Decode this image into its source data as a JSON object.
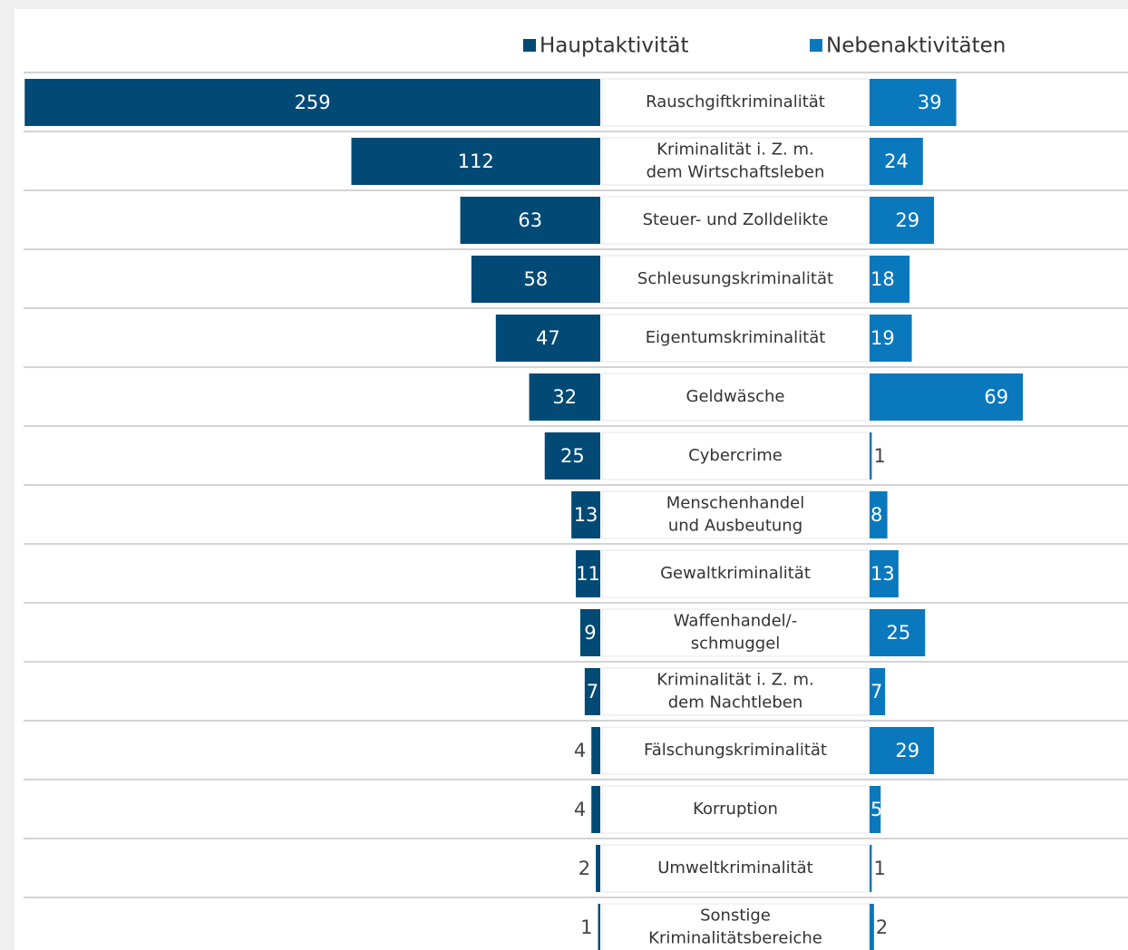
{
  "chart_data": {
    "type": "butterfly-bar",
    "categories": [
      [
        "Rauschgiftkriminalität"
      ],
      [
        "Kriminalität i. Z. m.",
        "dem Wirtschaftsleben"
      ],
      [
        "Steuer- und Zolldelikte"
      ],
      [
        "Schleusungskriminalität"
      ],
      [
        "Eigentumskriminalität"
      ],
      [
        "Geldwäsche"
      ],
      [
        "Cybercrime"
      ],
      [
        "Menschenhandel",
        "und Ausbeutung"
      ],
      [
        "Gewaltkriminalität"
      ],
      [
        "Waffenhandel/-",
        "schmuggel"
      ],
      [
        "Kriminalität i. Z. m.",
        "dem Nachtleben"
      ],
      [
        "Fälschungskriminalität"
      ],
      [
        "Korruption"
      ],
      [
        "Umweltkriminalität"
      ],
      [
        "Sonstige",
        "Kriminalitätsbereiche"
      ]
    ],
    "series": [
      {
        "name": "Hauptaktivität",
        "color": "#004a75",
        "values": [
          259,
          112,
          63,
          58,
          47,
          32,
          25,
          13,
          11,
          9,
          7,
          4,
          4,
          2,
          1
        ]
      },
      {
        "name": "Nebenaktivitäten",
        "color": "#0a78bd",
        "values": [
          39,
          24,
          29,
          18,
          19,
          69,
          1,
          8,
          13,
          25,
          7,
          29,
          5,
          1,
          2
        ]
      }
    ]
  }
}
